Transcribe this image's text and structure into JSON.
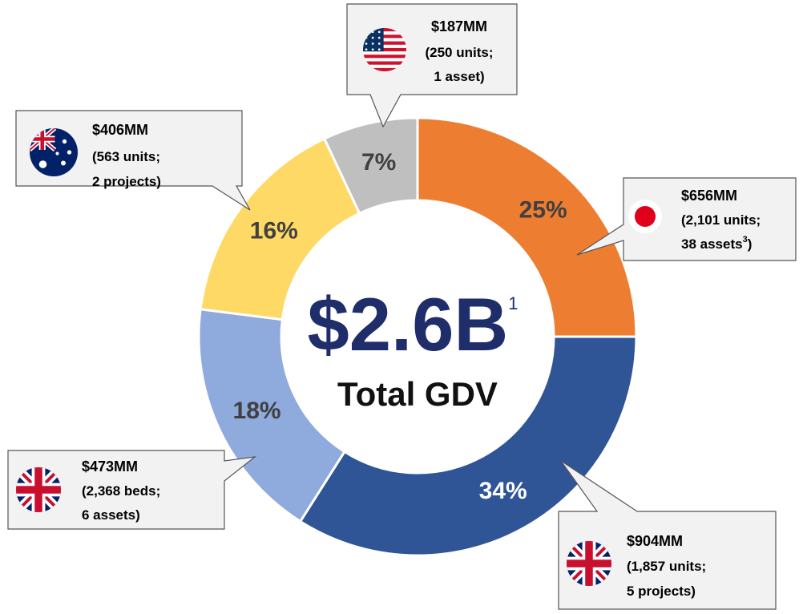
{
  "chart_data": {
    "type": "pie",
    "values": [
      25,
      34,
      18,
      16,
      7
    ],
    "value_labels": [
      "25%",
      "34%",
      "18%",
      "16%",
      "7%"
    ],
    "colors": [
      "#ed7d31",
      "#2f5597",
      "#8faadc",
      "#ffd966",
      "#bfbfbf"
    ],
    "value_label_colors": [
      "#404040",
      "#ffffff",
      "#404040",
      "#404040",
      "#404040"
    ],
    "center_label": {
      "text": "$2.6B",
      "sup": "1"
    },
    "center_subtitle": "Total GDV",
    "callouts": [
      {
        "lines": [
          "$656MM",
          "(2,101 units;",
          "38 assets"
        ],
        "sup": "3",
        "tail": ")"
      },
      {
        "lines": [
          "$904MM",
          "(1,857 units;",
          "5 projects)"
        ]
      },
      {
        "lines": [
          "$473MM",
          "(2,368 beds;",
          "6 assets)"
        ]
      },
      {
        "lines": [
          "$406MM",
          "(563 units;",
          "2 projects)"
        ]
      },
      {
        "lines": [
          "$187MM",
          "(250 units;",
          "1 asset)"
        ]
      }
    ]
  }
}
